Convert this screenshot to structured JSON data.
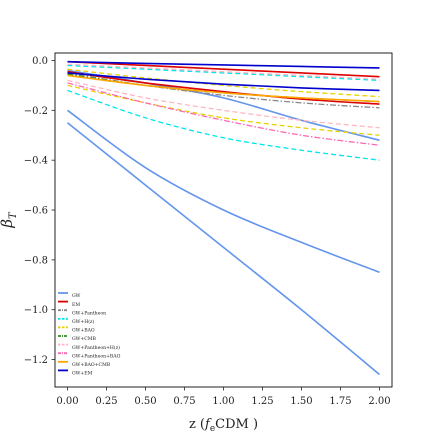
{
  "chart_data": {
    "type": "line",
    "title": "",
    "xlabel": "z (f_eCDM )",
    "xlabel_parts": {
      "pre": "z (",
      "main": "f",
      "sub": "e",
      "post": "CDM )"
    },
    "ylabel": "β_T",
    "ylabel_parts": {
      "main": "β",
      "sub": "T"
    },
    "xlim": [
      -0.08,
      2.08
    ],
    "ylim": [
      -1.31,
      0.03
    ],
    "x_ticks": [
      0.0,
      0.25,
      0.5,
      0.75,
      1.0,
      1.25,
      1.5,
      1.75,
      2.0
    ],
    "x_tick_labels": [
      "0.00",
      "0.25",
      "0.50",
      "0.75",
      "1.00",
      "1.25",
      "1.50",
      "1.75",
      "2.00"
    ],
    "y_ticks": [
      0.0,
      -0.2,
      -0.4,
      -0.6,
      -0.8,
      -1.0,
      -1.2
    ],
    "y_tick_labels": [
      "0.0",
      "−0.2",
      "−0.4",
      "−0.6",
      "−0.8",
      "−1.0",
      "−1.2"
    ],
    "grid": false,
    "legend_position": "lower-left",
    "series": [
      {
        "name": "GW",
        "color": "#6495ed",
        "dash": "solid",
        "x": [
          0,
          0.5,
          1.0,
          1.5,
          2.0
        ],
        "y": [
          -0.2,
          -0.43,
          -0.6,
          -0.73,
          -0.85
        ]
      },
      {
        "name": "GW",
        "color": "#6495ed",
        "dash": "solid",
        "x": [
          0,
          0.5,
          1.0,
          1.5,
          2.0
        ],
        "y": [
          -0.25,
          -0.5,
          -0.75,
          -1.0,
          -1.26
        ]
      },
      {
        "name": "GW",
        "color": "#6495ed",
        "dash": "solid",
        "x": [
          0,
          0.5,
          1.0,
          1.5,
          2.0
        ],
        "y": [
          -0.04,
          -0.09,
          -0.15,
          -0.24,
          -0.32
        ]
      },
      {
        "name": "EM",
        "color": "#dd0000",
        "dash": "solid",
        "x": [
          0,
          0.5,
          1.0,
          1.5,
          2.0
        ],
        "y": [
          -0.045,
          -0.09,
          -0.125,
          -0.155,
          -0.175
        ]
      },
      {
        "name": "EM",
        "color": "#dd0000",
        "dash": "solid",
        "x": [
          0,
          0.5,
          1.0,
          1.5,
          2.0
        ],
        "y": [
          -0.005,
          -0.02,
          -0.035,
          -0.05,
          -0.065
        ]
      },
      {
        "name": "GW+Pantheon",
        "color": "#888888",
        "dash": "dashdot",
        "x": [
          0,
          0.5,
          1.0,
          1.5,
          2.0
        ],
        "y": [
          -0.05,
          -0.1,
          -0.14,
          -0.17,
          -0.19
        ]
      },
      {
        "name": "GW+H(z)",
        "color": "#00e5ee",
        "dash": "dashed",
        "x": [
          0,
          0.5,
          1.0,
          1.5,
          2.0
        ],
        "y": [
          -0.12,
          -0.23,
          -0.31,
          -0.36,
          -0.4
        ]
      },
      {
        "name": "GW+H(z)",
        "color": "#00e5ee",
        "dash": "dashed",
        "x": [
          0,
          0.5,
          1.0,
          1.5,
          2.0
        ],
        "y": [
          -0.02,
          -0.035,
          -0.05,
          -0.065,
          -0.08
        ]
      },
      {
        "name": "GW+BAO",
        "color": "#e6d200",
        "dash": "dashed",
        "x": [
          0,
          0.5,
          1.0,
          1.5,
          2.0
        ],
        "y": [
          -0.1,
          -0.17,
          -0.23,
          -0.27,
          -0.3
        ]
      },
      {
        "name": "GW+BAO",
        "color": "#e6d200",
        "dash": "dashed",
        "x": [
          0,
          0.5,
          1.0,
          1.5,
          2.0
        ],
        "y": [
          -0.035,
          -0.07,
          -0.1,
          -0.125,
          -0.145
        ]
      },
      {
        "name": "GW+CMB",
        "color": "#2e8b22",
        "dash": "dashdot",
        "x": [
          0,
          0.5,
          1.0,
          1.5,
          2.0
        ],
        "y": [
          -0.055,
          -0.1,
          -0.13,
          -0.15,
          -0.165
        ]
      },
      {
        "name": "GW+Pantheon+H(z)",
        "color": "#ffb6c1",
        "dash": "dashed",
        "x": [
          0,
          0.5,
          1.0,
          1.5,
          2.0
        ],
        "y": [
          -0.08,
          -0.15,
          -0.2,
          -0.24,
          -0.27
        ]
      },
      {
        "name": "GW+Pantheon+H(z)",
        "color": "#ffb6c1",
        "dash": "dashed",
        "x": [
          0,
          0.5,
          1.0,
          1.5,
          2.0
        ],
        "y": [
          -0.015,
          -0.03,
          -0.045,
          -0.06,
          -0.075
        ]
      },
      {
        "name": "GW+Pantheon+BAO",
        "color": "#ff69b4",
        "dash": "dashdot",
        "x": [
          0,
          0.5,
          1.0,
          1.5,
          2.0
        ],
        "y": [
          -0.09,
          -0.17,
          -0.24,
          -0.3,
          -0.34
        ]
      },
      {
        "name": "GW+BAO+CMB",
        "color": "#ffa500",
        "dash": "solid",
        "x": [
          0,
          0.5,
          1.0,
          1.5,
          2.0
        ],
        "y": [
          -0.06,
          -0.1,
          -0.13,
          -0.15,
          -0.165
        ]
      },
      {
        "name": "GW+EM",
        "color": "#0000cd",
        "dash": "solid",
        "x": [
          0,
          0.5,
          1.0,
          1.5,
          2.0
        ],
        "y": [
          -0.05,
          -0.075,
          -0.095,
          -0.11,
          -0.12
        ]
      },
      {
        "name": "GW+EM",
        "color": "#0000cd",
        "dash": "solid",
        "x": [
          0,
          0.5,
          1.0,
          1.5,
          2.0
        ],
        "y": [
          -0.005,
          -0.012,
          -0.018,
          -0.024,
          -0.03
        ]
      }
    ],
    "legend": [
      {
        "label": "GW",
        "color": "#6495ed",
        "dash": "solid"
      },
      {
        "label": "EM",
        "color": "#dd0000",
        "dash": "solid"
      },
      {
        "label": "GW+Pantheon",
        "color": "#888888",
        "dash": "dashdot"
      },
      {
        "label": "GW+H(z)",
        "color": "#00e5ee",
        "dash": "dashed"
      },
      {
        "label": "GW+BAO",
        "color": "#e6d200",
        "dash": "dashed"
      },
      {
        "label": "GW+CMB",
        "color": "#2e8b22",
        "dash": "dashdot"
      },
      {
        "label": "GW+Pantheon+H(z)",
        "color": "#ffb6c1",
        "dash": "dashed"
      },
      {
        "label": "GW+Pantheon+BAO",
        "color": "#ff69b4",
        "dash": "dashdot"
      },
      {
        "label": "GW+BAO+CMB",
        "color": "#ffa500",
        "dash": "solid"
      },
      {
        "label": "GW+EM",
        "color": "#0000cd",
        "dash": "solid"
      }
    ]
  }
}
